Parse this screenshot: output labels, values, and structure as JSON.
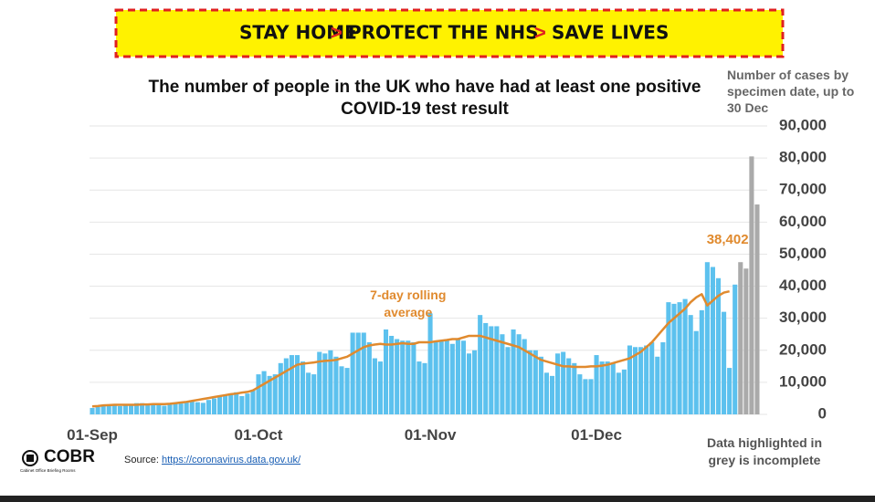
{
  "banner": [
    "STAY HOME",
    "PROTECT THE NHS",
    "SAVE LIVES"
  ],
  "logo": {
    "name": "COBR",
    "subtitle": "Cabinet Office Briefing Rooms"
  },
  "source": {
    "label": "Source:",
    "link": "https://coronavirus.data.gov.uk/"
  },
  "chart_data": {
    "type": "bar",
    "title": "The number of people in the UK who have had at least one positive COVID-19 test result",
    "y_label": "Number of cases by specimen date, up to 30 Dec",
    "note": "Data highlighted in grey is incomplete",
    "annotation": [
      "7-day rolling",
      "average"
    ],
    "grid": true,
    "ylim": [
      0,
      90000
    ],
    "yticks": [
      0,
      {
        "value": 10000,
        "label": "10,000"
      },
      {
        "value": 20000,
        "label": "20,000"
      },
      {
        "value": 30000,
        "label": "30,000"
      },
      {
        "value": 40000,
        "label": "40,000"
      },
      {
        "value": 50000,
        "label": "50,000"
      },
      {
        "value": 60000,
        "label": "60,000"
      },
      {
        "value": 70000,
        "label": "70,000"
      },
      {
        "value": 80000,
        "label": "80,000"
      },
      {
        "value": 90000,
        "label": "90,000"
      }
    ],
    "categories": [
      "01-Sep",
      null,
      null,
      null,
      null,
      null,
      null,
      null,
      null,
      null,
      null,
      null,
      null,
      null,
      null,
      null,
      null,
      null,
      null,
      null,
      null,
      null,
      null,
      null,
      null,
      null,
      null,
      null,
      null,
      null,
      "01-Oct",
      null,
      null,
      null,
      null,
      null,
      null,
      null,
      null,
      null,
      null,
      null,
      null,
      null,
      null,
      null,
      null,
      null,
      null,
      null,
      null,
      null,
      null,
      null,
      null,
      null,
      null,
      null,
      null,
      null,
      null,
      "01-Nov",
      null,
      null,
      null,
      null,
      null,
      null,
      null,
      null,
      null,
      null,
      null,
      null,
      null,
      null,
      null,
      null,
      null,
      null,
      null,
      null,
      null,
      null,
      null,
      null,
      null,
      null,
      null,
      null,
      null,
      "01-Dec",
      null,
      null,
      null,
      null,
      null,
      null,
      null,
      null,
      null,
      null,
      null,
      null,
      null,
      null,
      null,
      null,
      null,
      null,
      null,
      null,
      null,
      null,
      null,
      null,
      null,
      null,
      null,
      null,
      null
    ],
    "series": [
      {
        "type": "bar",
        "color": "#5cc1ee",
        "values": [
          2000,
          2300,
          2600,
          2800,
          2900,
          2600,
          2900,
          3000,
          3500,
          3500,
          3300,
          3400,
          3000,
          2700,
          3100,
          3400,
          3400,
          3700,
          4000,
          3800,
          3600,
          4500,
          5000,
          5600,
          6000,
          6500,
          6900,
          5700,
          6500,
          7500,
          12500,
          13500,
          12000,
          12500,
          16000,
          17500,
          18500,
          18500,
          16500,
          13000,
          12500,
          19500,
          19000,
          20000,
          18000,
          15000,
          14500,
          25500,
          25500,
          25500,
          22500,
          17500,
          16500,
          26500,
          24500,
          23500,
          23000,
          23000,
          22500,
          16500,
          16000,
          31500,
          22500,
          23000,
          23500,
          22000,
          23500,
          23000,
          19000,
          20000,
          31000,
          28500,
          27500,
          27500,
          25000,
          21000,
          26500,
          25000,
          23500,
          20000,
          20000,
          18000,
          13000,
          12000,
          19000,
          19500,
          17500,
          16000,
          12500,
          11000,
          11000,
          18500,
          16500,
          16500,
          16000,
          13000,
          14000,
          21500,
          21000,
          21000,
          21500,
          22500,
          18000,
          22500,
          35000,
          34500,
          35000,
          36000,
          31000,
          26000,
          32500,
          47500,
          46000,
          42500,
          32000,
          14500,
          40500,
          null,
          null,
          null,
          null
        ]
      },
      {
        "type": "bar",
        "color": "#aaaaaa",
        "values": [
          null,
          null,
          null,
          null,
          null,
          null,
          null,
          null,
          null,
          null,
          null,
          null,
          null,
          null,
          null,
          null,
          null,
          null,
          null,
          null,
          null,
          null,
          null,
          null,
          null,
          null,
          null,
          null,
          null,
          null,
          null,
          null,
          null,
          null,
          null,
          null,
          null,
          null,
          null,
          null,
          null,
          null,
          null,
          null,
          null,
          null,
          null,
          null,
          null,
          null,
          null,
          null,
          null,
          null,
          null,
          null,
          null,
          null,
          null,
          null,
          null,
          null,
          null,
          null,
          null,
          null,
          null,
          null,
          null,
          null,
          null,
          null,
          null,
          null,
          null,
          null,
          null,
          null,
          null,
          null,
          null,
          null,
          null,
          null,
          null,
          null,
          null,
          null,
          null,
          null,
          null,
          null,
          null,
          null,
          null,
          null,
          null,
          null,
          null,
          null,
          null,
          null,
          null,
          null,
          null,
          null,
          null,
          null,
          null,
          null,
          null,
          null,
          null,
          null,
          null,
          null,
          null,
          47500,
          45500,
          80500,
          65500
        ]
      },
      {
        "type": "line",
        "color": "#e08a2e",
        "values": [
          2500,
          2600,
          2800,
          2900,
          3000,
          3000,
          3000,
          3000,
          3000,
          3100,
          3100,
          3200,
          3200,
          3200,
          3300,
          3500,
          3700,
          3900,
          4200,
          4500,
          4800,
          5100,
          5400,
          5700,
          6000,
          6300,
          6500,
          6800,
          7000,
          7500,
          8500,
          9500,
          10500,
          11500,
          12500,
          13500,
          14500,
          15500,
          15800,
          16000,
          16200,
          16500,
          16700,
          16800,
          17000,
          17500,
          18000,
          19000,
          20000,
          21000,
          21500,
          21800,
          22000,
          21800,
          21800,
          22000,
          22200,
          22000,
          22000,
          22500,
          22500,
          22500,
          22800,
          23000,
          23200,
          23500,
          23500,
          24000,
          24500,
          24500,
          24500,
          24000,
          23500,
          23000,
          22500,
          22000,
          21500,
          21000,
          20000,
          19000,
          18000,
          17000,
          16500,
          16000,
          15500,
          15000,
          15000,
          14800,
          14800,
          14800,
          15000,
          15000,
          15200,
          15500,
          16000,
          16500,
          17000,
          17500,
          18500,
          19500,
          21000,
          22500,
          24500,
          26500,
          28500,
          30000,
          31500,
          33000,
          35000,
          36500,
          37500,
          34000,
          35500,
          37000,
          38000,
          38402,
          null,
          null,
          null,
          null,
          null
        ],
        "value_labels": [
          null,
          null,
          null,
          null,
          null,
          null,
          null,
          null,
          null,
          null,
          null,
          null,
          null,
          null,
          null,
          null,
          null,
          null,
          null,
          null,
          null,
          null,
          null,
          null,
          null,
          null,
          null,
          null,
          null,
          null,
          null,
          null,
          null,
          null,
          null,
          null,
          null,
          null,
          null,
          null,
          null,
          null,
          null,
          null,
          null,
          null,
          null,
          null,
          null,
          null,
          null,
          null,
          null,
          null,
          null,
          null,
          null,
          null,
          null,
          null,
          null,
          null,
          null,
          null,
          null,
          null,
          null,
          null,
          null,
          null,
          null,
          null,
          null,
          null,
          null,
          null,
          null,
          null,
          null,
          null,
          null,
          null,
          null,
          null,
          null,
          null,
          null,
          null,
          null,
          null,
          null,
          null,
          null,
          null,
          null,
          null,
          null,
          null,
          null,
          null,
          null,
          null,
          null,
          null,
          null,
          null,
          null,
          null,
          null,
          null,
          null,
          null,
          null,
          null,
          null,
          "38,402",
          null,
          null,
          null,
          null,
          null
        ]
      }
    ]
  }
}
